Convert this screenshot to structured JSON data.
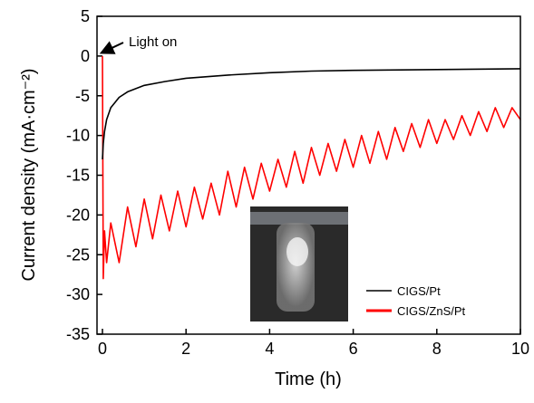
{
  "chart_data": {
    "type": "line",
    "xlabel": "Time (h)",
    "ylabel": "Current density (mA·cm⁻²)",
    "annotation": "Light on",
    "xlim": [
      -0.13,
      10
    ],
    "ylim": [
      -35,
      5
    ],
    "xticks": [
      0,
      2,
      4,
      6,
      8,
      10
    ],
    "yticks": [
      5,
      0,
      -5,
      -10,
      -15,
      -20,
      -25,
      -30,
      -35
    ],
    "legend": "lower right",
    "series": [
      {
        "name": "CIGS/Pt",
        "color": "#000000",
        "x": [
          0,
          0.02,
          0.05,
          0.1,
          0.2,
          0.4,
          0.6,
          1,
          1.5,
          2,
          3,
          4,
          5,
          6,
          8,
          10
        ],
        "values": [
          -13,
          -11,
          -9.5,
          -8,
          -6.5,
          -5.2,
          -4.5,
          -3.7,
          -3.2,
          -2.8,
          -2.4,
          -2.1,
          -1.9,
          -1.8,
          -1.7,
          -1.6
        ]
      },
      {
        "name": "CIGS/ZnS/Pt",
        "color": "#ff0000",
        "x": [
          0,
          0.02,
          0.05,
          0.1,
          0.2,
          0.4,
          0.6,
          0.8,
          1.0,
          1.2,
          1.4,
          1.6,
          1.8,
          2.0,
          2.2,
          2.4,
          2.6,
          2.8,
          3.0,
          3.2,
          3.4,
          3.6,
          3.8,
          4.0,
          4.2,
          4.4,
          4.6,
          4.8,
          5.0,
          5.2,
          5.4,
          5.6,
          5.8,
          6.0,
          6.2,
          6.4,
          6.6,
          6.8,
          7.0,
          7.2,
          7.4,
          7.6,
          7.8,
          8.0,
          8.2,
          8.4,
          8.6,
          8.8,
          9.0,
          9.2,
          9.4,
          9.6,
          9.8,
          10.0
        ],
        "values": [
          0,
          -28,
          -22,
          -26,
          -21,
          -26,
          -19,
          -24,
          -18,
          -23,
          -17.5,
          -22,
          -17,
          -21.5,
          -16.5,
          -20.5,
          -16,
          -20,
          -14.5,
          -19,
          -14,
          -18,
          -13.5,
          -17,
          -13,
          -16.5,
          -12,
          -16,
          -11.5,
          -15,
          -11,
          -14.5,
          -10.5,
          -14,
          -10,
          -13.5,
          -9.5,
          -13,
          -9,
          -12,
          -8.5,
          -11.5,
          -8,
          -11,
          -8,
          -10.5,
          -7.5,
          -10,
          -7,
          -9.5,
          -6.5,
          -9,
          -6.5,
          -8
        ]
      }
    ]
  }
}
